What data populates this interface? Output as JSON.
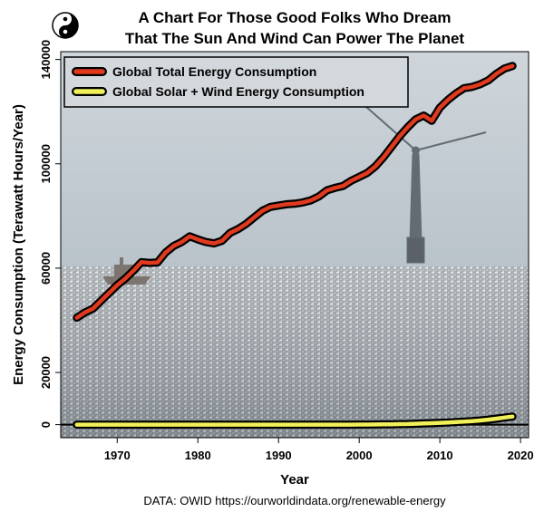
{
  "chart_data": {
    "type": "line",
    "title": "A Chart For Those Good Folks Who Dream",
    "subtitle": "That The Sun And Wind Can Power The Planet",
    "xlabel": "Year",
    "ylabel": "Energy Consumption (Terawatt Hours/Year)",
    "xlim": [
      1963,
      2021
    ],
    "ylim": [
      -5000,
      143000
    ],
    "x_ticks": [
      "1970",
      "1980",
      "1990",
      "2000",
      "2010",
      "2020"
    ],
    "y_ticks": [
      "0",
      "20000",
      "60000",
      "100000",
      "140000"
    ],
    "grid": false,
    "legend_position": "top-left",
    "background_photo": "offshore wind turbine over sunlit sea",
    "source": "DATA: OWID https://ourworldindata.org/renewable-energy",
    "x": [
      1965,
      1966,
      1967,
      1968,
      1969,
      1970,
      1971,
      1972,
      1973,
      1974,
      1975,
      1976,
      1977,
      1978,
      1979,
      1980,
      1981,
      1982,
      1983,
      1984,
      1985,
      1986,
      1987,
      1988,
      1989,
      1990,
      1991,
      1992,
      1993,
      1994,
      1995,
      1996,
      1997,
      1998,
      1999,
      2000,
      2001,
      2002,
      2003,
      2004,
      2005,
      2006,
      2007,
      2008,
      2009,
      2010,
      2011,
      2012,
      2013,
      2014,
      2015,
      2016,
      2017,
      2018,
      2019
    ],
    "series": [
      {
        "name": "Global Total Energy Consumption",
        "color": "#e03a1e",
        "values": [
          41000,
          43000,
          44500,
          47500,
          50500,
          53500,
          56000,
          59000,
          62300,
          62000,
          62200,
          66000,
          68500,
          70000,
          72200,
          71000,
          70000,
          69500,
          70500,
          73500,
          75000,
          77000,
          79500,
          82000,
          83500,
          84000,
          84500,
          84700,
          85200,
          86000,
          87500,
          89800,
          90800,
          91500,
          93500,
          95000,
          96500,
          99000,
          102500,
          106500,
          110500,
          114000,
          117000,
          118500,
          116500,
          121500,
          124500,
          127000,
          129000,
          129500,
          130500,
          132000,
          134500,
          136500,
          137500
        ]
      },
      {
        "name": "Global Solar + Wind Energy Consumption",
        "color": "#f2f05a",
        "values": [
          0,
          0,
          0,
          0,
          0,
          0,
          0,
          0,
          0,
          0,
          0,
          0,
          0,
          0,
          0,
          0,
          0,
          0,
          0,
          0,
          0,
          0,
          0,
          0,
          0,
          0,
          0,
          0,
          0,
          0,
          0,
          0,
          0,
          0,
          10,
          30,
          50,
          80,
          100,
          150,
          200,
          260,
          340,
          450,
          560,
          700,
          850,
          1000,
          1150,
          1350,
          1600,
          1900,
          2300,
          2700,
          3100
        ]
      }
    ]
  },
  "logo": {
    "name": "yin-yang-icon"
  }
}
